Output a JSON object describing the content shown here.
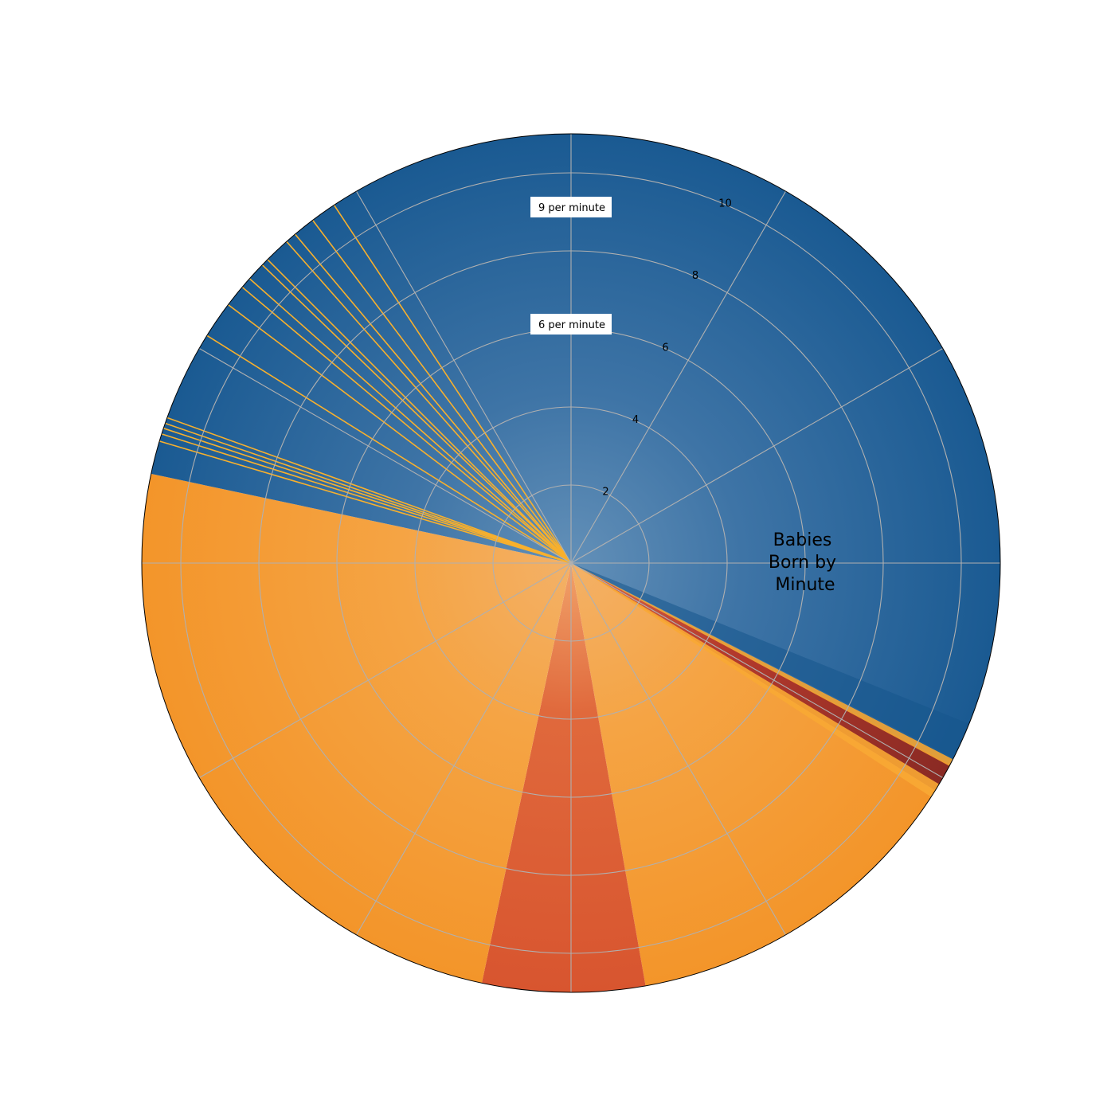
{
  "chart_data": {
    "type": "polar-bar",
    "title_lines": [
      "Babies",
      "Born by",
      "Minute"
    ],
    "r_ticks": [
      2,
      4,
      6,
      8,
      10
    ],
    "rlim": [
      0,
      11
    ],
    "theta_direction": "clockwise",
    "theta_zero": "north",
    "grid": true,
    "annotations": [
      {
        "label": "9 per minute",
        "r": 9
      },
      {
        "label": "6 per minute",
        "r": 6
      }
    ],
    "colors": {
      "blue_dark": "#0f5188",
      "blue_mid": "#2e6aa0",
      "blue_light": "#5f8fb7",
      "orange": "#f49b2a",
      "orange_light": "#f5b050",
      "red": "#d4482f",
      "red_dark": "#8a2a24",
      "yellow": "#f8b02c",
      "grid": "#b0b0b0"
    },
    "color_regions": [
      {
        "from_deg": 0,
        "to_deg": 118,
        "color": "blue"
      },
      {
        "from_deg": 118,
        "to_deg": 122,
        "color": "red_dark"
      },
      {
        "from_deg": 122,
        "to_deg": 170,
        "color": "orange"
      },
      {
        "from_deg": 170,
        "to_deg": 192,
        "color": "red"
      },
      {
        "from_deg": 192,
        "to_deg": 282,
        "color": "orange"
      },
      {
        "from_deg": 282,
        "to_deg": 360,
        "color": "blue"
      }
    ],
    "yellow_rays_deg": [
      286.5,
      287.5,
      288.3,
      289.0,
      289.8,
      302.0,
      307.0,
      310.0,
      311.5,
      314.0,
      315.0,
      318.5,
      320.0,
      323.0,
      326.5
    ]
  }
}
